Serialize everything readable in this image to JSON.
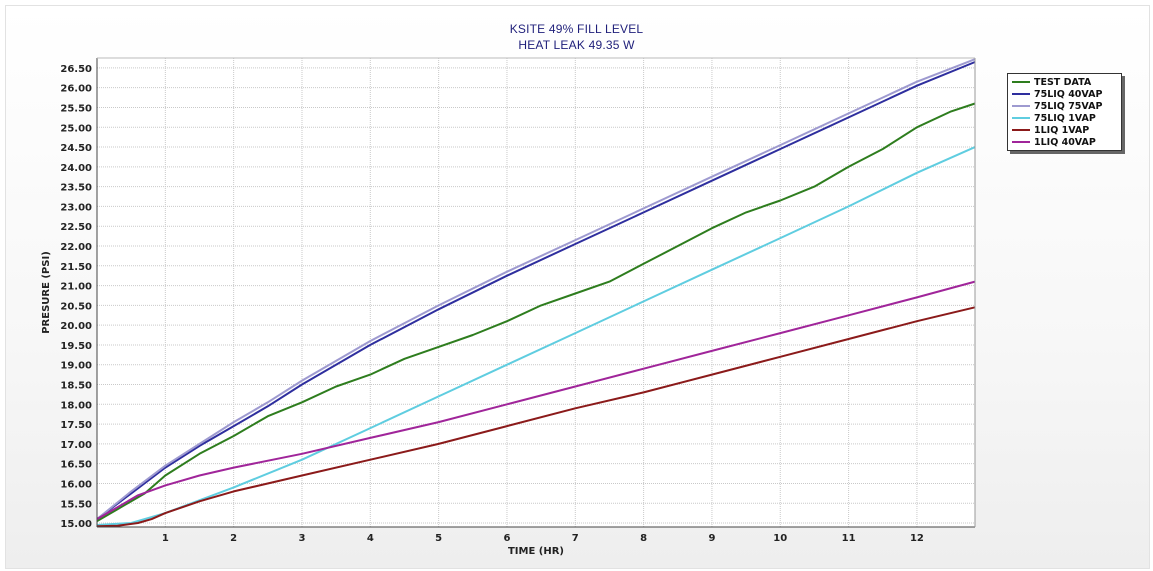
{
  "chart_data": {
    "type": "line",
    "title": "KSITE 49% FILL LEVEL",
    "subtitle": "HEAT LEAK 49.35 W",
    "xlabel": "TIME (HR)",
    "ylabel": "PRESURE (PSI)",
    "xlim": [
      0,
      12.85
    ],
    "ylim": [
      14.9,
      26.75
    ],
    "x_ticks": [
      1,
      2,
      3,
      4,
      5,
      6,
      7,
      8,
      9,
      10,
      11,
      12
    ],
    "y_ticks": [
      "15.00",
      "15.50",
      "16.00",
      "16.50",
      "17.00",
      "17.50",
      "18.00",
      "18.50",
      "19.00",
      "19.50",
      "20.00",
      "20.50",
      "21.00",
      "21.50",
      "22.00",
      "22.50",
      "23.00",
      "23.50",
      "24.00",
      "24.50",
      "25.00",
      "25.50",
      "26.00",
      "26.50"
    ],
    "grid": true,
    "legend_position": "top-right",
    "series": [
      {
        "name": "TEST DATA",
        "color": "#2e7d1e",
        "points": [
          [
            0,
            15.05
          ],
          [
            0.3,
            15.35
          ],
          [
            0.7,
            15.75
          ],
          [
            1,
            16.2
          ],
          [
            1.5,
            16.75
          ],
          [
            2,
            17.2
          ],
          [
            2.5,
            17.7
          ],
          [
            3,
            18.05
          ],
          [
            3.5,
            18.45
          ],
          [
            4,
            18.75
          ],
          [
            4.5,
            19.15
          ],
          [
            5,
            19.45
          ],
          [
            5.5,
            19.75
          ],
          [
            6,
            20.1
          ],
          [
            6.5,
            20.5
          ],
          [
            7,
            20.8
          ],
          [
            7.5,
            21.1
          ],
          [
            8,
            21.55
          ],
          [
            8.5,
            22.0
          ],
          [
            9,
            22.45
          ],
          [
            9.5,
            22.85
          ],
          [
            10,
            23.15
          ],
          [
            10.5,
            23.5
          ],
          [
            11,
            24.0
          ],
          [
            11.5,
            24.45
          ],
          [
            12,
            25.0
          ],
          [
            12.5,
            25.4
          ],
          [
            12.85,
            25.6
          ]
        ]
      },
      {
        "name": "75LIQ 40VAP",
        "color": "#2e2e9e",
        "points": [
          [
            0,
            15.1
          ],
          [
            0.5,
            15.75
          ],
          [
            1,
            16.4
          ],
          [
            1.5,
            16.95
          ],
          [
            2,
            17.45
          ],
          [
            2.5,
            17.95
          ],
          [
            3,
            18.5
          ],
          [
            4,
            19.5
          ],
          [
            5,
            20.4
          ],
          [
            6,
            21.25
          ],
          [
            7,
            22.05
          ],
          [
            8,
            22.85
          ],
          [
            9,
            23.65
          ],
          [
            10,
            24.45
          ],
          [
            11,
            25.25
          ],
          [
            12,
            26.05
          ],
          [
            12.85,
            26.65
          ]
        ]
      },
      {
        "name": "75LIQ 75VAP",
        "color": "#9e9ad0",
        "points": [
          [
            0,
            15.1
          ],
          [
            0.5,
            15.8
          ],
          [
            1,
            16.45
          ],
          [
            1.5,
            17.0
          ],
          [
            2,
            17.55
          ],
          [
            2.5,
            18.05
          ],
          [
            3,
            18.6
          ],
          [
            4,
            19.6
          ],
          [
            5,
            20.5
          ],
          [
            6,
            21.35
          ],
          [
            7,
            22.15
          ],
          [
            8,
            22.95
          ],
          [
            9,
            23.75
          ],
          [
            10,
            24.55
          ],
          [
            11,
            25.35
          ],
          [
            12,
            26.15
          ],
          [
            12.85,
            26.72
          ]
        ]
      },
      {
        "name": "75LIQ 1VAP",
        "color": "#5fcde0",
        "points": [
          [
            0,
            14.95
          ],
          [
            0.5,
            15.0
          ],
          [
            1,
            15.25
          ],
          [
            2,
            15.9
          ],
          [
            3,
            16.6
          ],
          [
            4,
            17.4
          ],
          [
            5,
            18.2
          ],
          [
            6,
            19.0
          ],
          [
            7,
            19.8
          ],
          [
            8,
            20.6
          ],
          [
            9,
            21.4
          ],
          [
            10,
            22.2
          ],
          [
            11,
            23.0
          ],
          [
            12,
            23.85
          ],
          [
            12.85,
            24.5
          ]
        ]
      },
      {
        "name": "1LIQ 1VAP",
        "color": "#8b1a1a",
        "points": [
          [
            0,
            14.92
          ],
          [
            0.3,
            14.93
          ],
          [
            0.6,
            15.0
          ],
          [
            0.8,
            15.1
          ],
          [
            1,
            15.25
          ],
          [
            1.5,
            15.55
          ],
          [
            2,
            15.8
          ],
          [
            3,
            16.2
          ],
          [
            4,
            16.6
          ],
          [
            5,
            17.0
          ],
          [
            6,
            17.45
          ],
          [
            7,
            17.9
          ],
          [
            8,
            18.3
          ],
          [
            9,
            18.75
          ],
          [
            10,
            19.2
          ],
          [
            11,
            19.65
          ],
          [
            12,
            20.1
          ],
          [
            12.85,
            20.45
          ]
        ]
      },
      {
        "name": "1LIQ 40VAP",
        "color": "#a0259a",
        "points": [
          [
            0,
            15.1
          ],
          [
            0.3,
            15.4
          ],
          [
            0.6,
            15.7
          ],
          [
            1,
            15.95
          ],
          [
            1.5,
            16.2
          ],
          [
            2,
            16.4
          ],
          [
            3,
            16.75
          ],
          [
            4,
            17.15
          ],
          [
            5,
            17.55
          ],
          [
            6,
            18.0
          ],
          [
            7,
            18.45
          ],
          [
            8,
            18.9
          ],
          [
            9,
            19.35
          ],
          [
            10,
            19.8
          ],
          [
            11,
            20.25
          ],
          [
            12,
            20.7
          ],
          [
            12.85,
            21.1
          ]
        ]
      }
    ]
  }
}
